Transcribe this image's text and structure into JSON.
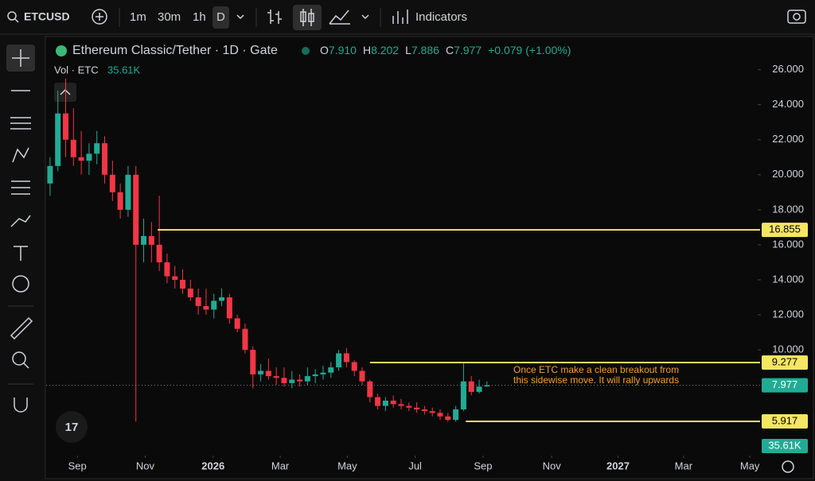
{
  "toolbar": {
    "symbol": "ETCUSD",
    "intervals": [
      "1m",
      "30m",
      "1h",
      "D"
    ],
    "indicators": "Indicators"
  },
  "chart_data": {
    "type": "candlestick",
    "title": "Ethereum Classic/Tether · 1D · Gate",
    "ohlc_legend": [
      {
        "label": "O",
        "value": "7.910"
      },
      {
        "label": "H",
        "value": "8.202"
      },
      {
        "label": "L",
        "value": "7.886"
      },
      {
        "label": "C",
        "value": "7.977"
      }
    ],
    "change": "+0.079 (+1.00%)",
    "volume_label": "Vol · ETC",
    "volume_value": "35.61K",
    "up_color": "#22ab94",
    "down_color": "#f23645",
    "x": [
      0.5,
      1.5,
      2.5,
      3.5,
      4.5,
      5.5,
      6.5,
      7.5,
      8.5,
      9.5,
      10.5,
      11.5,
      12.5,
      13.5,
      14.5,
      15.5,
      16.5,
      17.5,
      18.5,
      19.5,
      20.5,
      21.5,
      22.5,
      23.5,
      24.5,
      25.5,
      26.5,
      27.5,
      28.5,
      29.5,
      30.5,
      31.5,
      32.5,
      33.5,
      34.5,
      35.5,
      36.5,
      37.5,
      38.5,
      39.5,
      40.5,
      41.5,
      42.5,
      43.5,
      44.5,
      45.5,
      46.5,
      47.5,
      48.5,
      49.5,
      50.5,
      51.5,
      52.5,
      53.5,
      54.5,
      55.5,
      56.5
    ],
    "values": [
      [
        19.5,
        21,
        18.8,
        20.5
      ],
      [
        20.5,
        24.8,
        20.2,
        23.5
      ],
      [
        23.5,
        25.5,
        21,
        22
      ],
      [
        22,
        23.8,
        20.5,
        21
      ],
      [
        21,
        22.5,
        20,
        20.8
      ],
      [
        20.8,
        21.8,
        20,
        21.2
      ],
      [
        21.2,
        22.5,
        20.6,
        21.8
      ],
      [
        21.8,
        22.2,
        19.5,
        20
      ],
      [
        20,
        20.8,
        18.5,
        19
      ],
      [
        19,
        19.5,
        17.5,
        18
      ],
      [
        18,
        20.5,
        17.6,
        20
      ],
      [
        20,
        20.5,
        5.9,
        16
      ],
      [
        16,
        17.5,
        15,
        16.5
      ],
      [
        16.5,
        17.3,
        15,
        16
      ],
      [
        16,
        18.8,
        14.5,
        15
      ],
      [
        15,
        15.5,
        13.8,
        14.2
      ],
      [
        14.2,
        14.8,
        13.5,
        14
      ],
      [
        14,
        14.6,
        13.2,
        13.5
      ],
      [
        13.5,
        14,
        12.8,
        13
      ],
      [
        13,
        13.5,
        12,
        12.5
      ],
      [
        12.5,
        13.5,
        12,
        12.3
      ],
      [
        12.3,
        13.2,
        11.8,
        12.8
      ],
      [
        12.8,
        13.5,
        12.5,
        13
      ],
      [
        13,
        13.2,
        11.5,
        11.8
      ],
      [
        11.8,
        12,
        11,
        11.2
      ],
      [
        11.2,
        11.5,
        9.8,
        10
      ],
      [
        10,
        10.2,
        7.8,
        8.6
      ],
      [
        8.6,
        9.2,
        8.2,
        8.8
      ],
      [
        8.8,
        9.5,
        8.3,
        8.5
      ],
      [
        8.5,
        9,
        8,
        8.4
      ],
      [
        8.4,
        9,
        7.9,
        8.1
      ],
      [
        8.1,
        8.8,
        7.8,
        8.3
      ],
      [
        8.3,
        8.6,
        7.9,
        8.2
      ],
      [
        8.2,
        9,
        8,
        8.5
      ],
      [
        8.5,
        8.9,
        8.1,
        8.6
      ],
      [
        8.6,
        9.1,
        8.3,
        8.7
      ],
      [
        8.7,
        9.3,
        8.4,
        9
      ],
      [
        9,
        10,
        8.8,
        9.8
      ],
      [
        9.8,
        10.1,
        9,
        9.3
      ],
      [
        9.3,
        9.4,
        8.5,
        8.8
      ],
      [
        8.8,
        9,
        8,
        8.2
      ],
      [
        8.2,
        8.3,
        7,
        7.3
      ],
      [
        7.3,
        7.5,
        6.6,
        6.8
      ],
      [
        6.8,
        7.3,
        6.5,
        7.1
      ],
      [
        7.1,
        7.4,
        6.7,
        6.9
      ],
      [
        6.9,
        7.2,
        6.6,
        6.8
      ],
      [
        6.8,
        7,
        6.5,
        6.7
      ],
      [
        6.7,
        7,
        6.4,
        6.6
      ],
      [
        6.6,
        6.8,
        6.3,
        6.5
      ],
      [
        6.5,
        6.7,
        6.2,
        6.4
      ],
      [
        6.4,
        6.6,
        6,
        6.2
      ],
      [
        6.2,
        6.4,
        5.9,
        6
      ],
      [
        6,
        6.8,
        5.9,
        6.6
      ],
      [
        6.6,
        9.3,
        6.5,
        8.2
      ],
      [
        8.2,
        8.5,
        7.4,
        7.6
      ],
      [
        7.6,
        8.3,
        7.5,
        7.9
      ],
      [
        7.91,
        8.202,
        7.886,
        7.977
      ]
    ],
    "xlim": [
      0,
      91
    ],
    "xticks": [
      {
        "value": 4,
        "label": "Sep"
      },
      {
        "value": 12.7,
        "label": "Nov"
      },
      {
        "value": 21.4,
        "label": "2026"
      },
      {
        "value": 30,
        "label": "Mar"
      },
      {
        "value": 38.6,
        "label": "May"
      },
      {
        "value": 47.3,
        "label": "Jul"
      },
      {
        "value": 56,
        "label": "Sep"
      },
      {
        "value": 64.8,
        "label": "Nov"
      },
      {
        "value": 73.3,
        "label": "2027"
      },
      {
        "value": 81.7,
        "label": "Mar"
      },
      {
        "value": 90.2,
        "label": "May"
      }
    ],
    "ylim": [
      4.1,
      27.8
    ],
    "yticks": [
      {
        "value": 10,
        "label": "10.000"
      },
      {
        "value": 12,
        "label": "12.000"
      },
      {
        "value": 14,
        "label": "14.000"
      },
      {
        "value": 16,
        "label": "16.000"
      },
      {
        "value": 18,
        "label": "18.000"
      },
      {
        "value": 20,
        "label": "20.000"
      },
      {
        "value": 22,
        "label": "22.000"
      },
      {
        "value": 24,
        "label": "24.000"
      },
      {
        "value": 26,
        "label": "26.000"
      }
    ],
    "levels": [
      {
        "value": 16.855,
        "start_x": 14.3
      },
      {
        "value": 9.277,
        "start_x": 41.5
      },
      {
        "value": 5.917,
        "start_x": 53.8
      }
    ],
    "level_color": "#f5e663",
    "last_price": 7.977,
    "annotation": [
      "Once ETC make a clean breakout from",
      "this sidewise move. It will rally upwards"
    ],
    "annotation_color": "#f0a030"
  }
}
